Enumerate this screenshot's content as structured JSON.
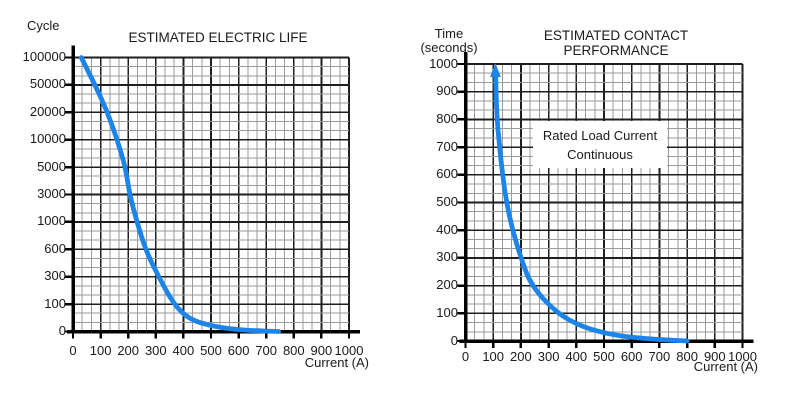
{
  "figure": {
    "background": "#ffffff",
    "text_color": "#1a1a1a",
    "grid_minor_color": "#9a9a9a",
    "grid_major_color": "#1f1f1f",
    "axis_color": "#000000"
  },
  "chart_data": [
    {
      "type": "line",
      "title": "ESTIMATED ELECTRIC LIFE",
      "title_lines": [
        "ESTIMATED ELECTRIC LIFE"
      ],
      "xlabel": "Current (A)",
      "ylabel": "Cycle",
      "ylabel_lines": [
        "Cycle"
      ],
      "xlim": [
        0,
        1000
      ],
      "x_ticks": [
        0,
        100,
        200,
        300,
        400,
        500,
        600,
        700,
        800,
        900,
        1000
      ],
      "y_ticks_bottom_to_top": [
        0,
        100,
        300,
        600,
        1000,
        3000,
        5000,
        10000,
        20000,
        50000,
        100000
      ],
      "y_scale": "non-linear: labeled ticks are equally spaced",
      "grid": {
        "show": true,
        "minor_divisions": 3
      },
      "line_color": "#1d85e8",
      "arrow_at_curve_top": false,
      "series": [
        {
          "name": "electric-life-curve",
          "points": [
            [
              30,
              100000
            ],
            [
              80,
              50000
            ],
            [
              125,
              20000
            ],
            [
              160,
              10000
            ],
            [
              190,
              5000
            ],
            [
              205,
              3000
            ],
            [
              232,
              1000
            ],
            [
              262,
              600
            ],
            [
              310,
              300
            ],
            [
              365,
              100
            ],
            [
              420,
              45
            ],
            [
              500,
              20
            ],
            [
              580,
              8
            ],
            [
              660,
              3
            ],
            [
              745,
              0
            ]
          ]
        }
      ]
    },
    {
      "type": "line",
      "title": "ESTIMATED CONTACT PERFORMANCE",
      "title_lines": [
        "ESTIMATED CONTACT",
        "PERFORMANCE"
      ],
      "xlabel": "Current (A)",
      "ylabel": "Time (seconds)",
      "ylabel_lines": [
        "Time",
        "(seconds)"
      ],
      "xlim": [
        0,
        1000
      ],
      "ylim": [
        0,
        1000
      ],
      "x_ticks": [
        0,
        100,
        200,
        300,
        400,
        500,
        600,
        700,
        800,
        900,
        1000
      ],
      "y_ticks_bottom_to_top": [
        0,
        100,
        200,
        300,
        400,
        500,
        600,
        700,
        800,
        900,
        1000
      ],
      "y_scale": "linear",
      "grid": {
        "show": true,
        "minor_divisions": 3
      },
      "line_color": "#1d85e8",
      "arrow_at_curve_top": true,
      "annotation": {
        "lines": [
          "Rated Load Current",
          "Continuous"
        ],
        "background": "#ffffff"
      },
      "series": [
        {
          "name": "contact-performance-curve",
          "points": [
            [
              108,
              1000
            ],
            [
              110,
              900
            ],
            [
              114,
              800
            ],
            [
              123,
              700
            ],
            [
              134,
              600
            ],
            [
              148,
              500
            ],
            [
              170,
              400
            ],
            [
              200,
              300
            ],
            [
              237,
              200
            ],
            [
              330,
              100
            ],
            [
              420,
              52
            ],
            [
              510,
              26
            ],
            [
              600,
              13
            ],
            [
              700,
              5
            ],
            [
              800,
              0
            ]
          ]
        }
      ]
    }
  ]
}
